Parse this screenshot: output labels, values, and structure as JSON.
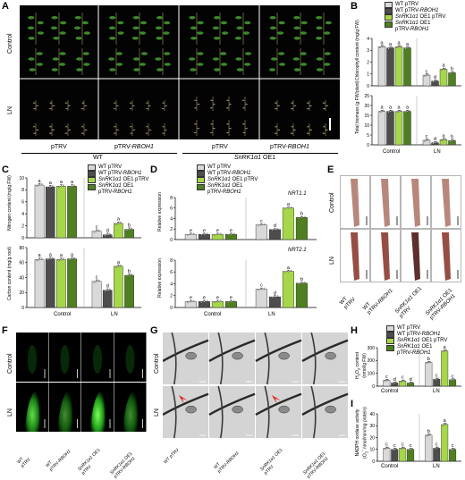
{
  "panels": {
    "A": "A",
    "B": "B",
    "C": "C",
    "D": "D",
    "E": "E",
    "F": "F",
    "G": "G",
    "H": "H",
    "I": "I"
  },
  "colors": {
    "wt_ptrv": "#d9d9d9",
    "wt_ptrv_rboh1": "#4d4d4d",
    "oe_ptrv": "#a6d64a",
    "oe_ptrv_rboh1": "#4f7f20",
    "plant_bg": "#000000",
    "root_stain": "#a0524a",
    "fluorescence": "#33ff33"
  },
  "legend": {
    "l1": "WT pTRV",
    "l2": "WT pTRV-RBOH1",
    "l3_a": "SnRK1α1 OE1 pTRV",
    "l4_a": "SnRK1α1 OE1",
    "l4_b": "pTRV-RBOH1"
  },
  "conditions": {
    "control": "Control",
    "ln": "LN"
  },
  "panelA": {
    "row_control": "Control",
    "row_ln": "LN",
    "col1": "pTRV",
    "col2": "pTRV-RBOH1",
    "col3": "pTRV",
    "col4": "pTRV-RBOH1",
    "group1": "WT",
    "group2": "SnRK1α1 OE1"
  },
  "panelB": {
    "ylabel1": "Chlorophyll content (mg/g FW)",
    "ylabel2": "Total biomass (g FW/plant)",
    "xlabels": [
      "Control",
      "LN"
    ]
  },
  "panelC": {
    "ylabel1": "Nitrogen content (mg/g FW)",
    "ylabel2": "Carbon content (mg/g root)",
    "xlabels": [
      "Control",
      "LN"
    ]
  },
  "panelD": {
    "ylabel": "Relative expression",
    "gene1": "NRT1.1",
    "gene2": "NRT2.1",
    "xlabels": [
      "Control",
      "LN"
    ]
  },
  "panelE": {
    "row_control": "Control",
    "row_ln": "LN",
    "cols": [
      "WT\npTRV",
      "WT\npTRV-RBOH1",
      "SnRK1α1 OE1\npTRV",
      "SnRK1α1 OE1\npTRV-RBOH1"
    ]
  },
  "panelF": {
    "row_control": "Control",
    "row_ln": "LN",
    "cols": [
      "WT\npTRV",
      "WT\npTRV-RBOH1",
      "SnRK1α1 OE1\npTRV",
      "SnRK1α1 OE1\npTRV-RBOH1"
    ]
  },
  "panelG": {
    "row_control": "Control",
    "row_ln": "LN",
    "cols": [
      "WT pTRV",
      "WT\npTRV-RBOH1",
      "SnRK1α1 OE1\npTRV",
      "SnRK1α1 OE1\npTRV-RBOH1"
    ]
  },
  "panelH": {
    "ylabel": "H2O2 content (nmol/g FW)",
    "xlabels": [
      "Control",
      "LN"
    ]
  },
  "panelI": {
    "ylabel": "NADPH oxidase activity (O2- nmol/min/mg protein)",
    "xlabels": [
      "Control",
      "LN"
    ]
  },
  "chart_data": [
    {
      "id": "B-chlorophyll",
      "type": "bar",
      "ylabel": "Chlorophyll content (mg/g FW)",
      "ylim": [
        0,
        4
      ],
      "yticks": [
        0,
        1,
        2,
        3,
        4
      ],
      "categories": [
        "Control",
        "LN"
      ],
      "series": [
        {
          "name": "WT pTRV",
          "values": [
            3.3,
            0.9
          ]
        },
        {
          "name": "WT pTRV-RBOH1",
          "values": [
            3.2,
            0.4
          ]
        },
        {
          "name": "SnRK1α1 OE1 pTRV",
          "values": [
            3.3,
            1.4
          ]
        },
        {
          "name": "SnRK1α1 OE1 pTRV-RBOH1",
          "values": [
            3.2,
            1.1
          ]
        }
      ],
      "letters": [
        [
          "a",
          "a",
          "a",
          "a"
        ],
        [
          "c",
          "d",
          "a",
          "b"
        ]
      ]
    },
    {
      "id": "B-biomass",
      "type": "bar",
      "ylabel": "Total biomass (g FW/plant)",
      "ylim": [
        0,
        25
      ],
      "yticks": [
        0,
        5,
        10,
        15,
        20,
        25
      ],
      "categories": [
        "Control",
        "LN"
      ],
      "series": [
        {
          "name": "WT pTRV",
          "values": [
            17,
            2.3
          ]
        },
        {
          "name": "WT pTRV-RBOH1",
          "values": [
            17,
            1.0
          ]
        },
        {
          "name": "SnRK1α1 OE1 pTRV",
          "values": [
            17,
            2.6
          ]
        },
        {
          "name": "SnRK1α1 OE1 pTRV-RBOH1",
          "values": [
            17,
            2.1
          ]
        }
      ],
      "letters": [
        [
          "a",
          "a",
          "a",
          "a"
        ],
        [
          "c",
          "d",
          "a",
          "b"
        ]
      ]
    },
    {
      "id": "C-nitrogen",
      "type": "bar",
      "ylabel": "Nitrogen content (mg/g FW)",
      "ylim": [
        0,
        10
      ],
      "yticks": [
        0,
        2,
        4,
        6,
        8,
        10
      ],
      "categories": [
        "Control",
        "LN"
      ],
      "series": [
        {
          "name": "WT pTRV",
          "values": [
            8.8,
            1.1
          ]
        },
        {
          "name": "WT pTRV-RBOH1",
          "values": [
            8.5,
            0.5
          ]
        },
        {
          "name": "SnRK1α1 OE1 pTRV",
          "values": [
            8.6,
            2.4
          ]
        },
        {
          "name": "SnRK1α1 OE1 pTRV-RBOH1",
          "values": [
            8.6,
            1.4
          ]
        }
      ],
      "letters": [
        [
          "a",
          "a",
          "a",
          "a"
        ],
        [
          "c",
          "d",
          "a",
          "b"
        ]
      ]
    },
    {
      "id": "C-carbon",
      "type": "bar",
      "ylabel": "Carbon content (mg/g root)",
      "ylim": [
        0,
        80
      ],
      "yticks": [
        0,
        20,
        40,
        60,
        80
      ],
      "categories": [
        "Control",
        "LN"
      ],
      "series": [
        {
          "name": "WT pTRV",
          "values": [
            64,
            35
          ]
        },
        {
          "name": "WT pTRV-RBOH1",
          "values": [
            65,
            23
          ]
        },
        {
          "name": "SnRK1α1 OE1 pTRV",
          "values": [
            64,
            55
          ]
        },
        {
          "name": "SnRK1α1 OE1 pTRV-RBOH1",
          "values": [
            65,
            43
          ]
        }
      ],
      "letters": [
        [
          "a",
          "a",
          "a",
          "a"
        ],
        [
          "c",
          "d",
          "a",
          "b"
        ]
      ]
    },
    {
      "id": "D-NRT1.1",
      "type": "bar",
      "ylabel": "Relative expression",
      "ylim": [
        0,
        8
      ],
      "yticks": [
        0,
        2,
        4,
        6,
        8
      ],
      "categories": [
        "Control",
        "LN"
      ],
      "series": [
        {
          "name": "WT pTRV",
          "values": [
            1.0,
            2.8
          ]
        },
        {
          "name": "WT pTRV-RBOH1",
          "values": [
            1.0,
            1.9
          ]
        },
        {
          "name": "SnRK1α1 OE1 pTRV",
          "values": [
            1.0,
            6.0
          ]
        },
        {
          "name": "SnRK1α1 OE1 pTRV-RBOH1",
          "values": [
            1.0,
            4.2
          ]
        }
      ],
      "letters": [
        [
          "e",
          "e",
          "e",
          "e"
        ],
        [
          "c",
          "d",
          "a",
          "b"
        ]
      ]
    },
    {
      "id": "D-NRT2.1",
      "type": "bar",
      "ylabel": "Relative expression",
      "ylim": [
        0,
        8
      ],
      "yticks": [
        0,
        2,
        4,
        6,
        8
      ],
      "categories": [
        "Control",
        "LN"
      ],
      "series": [
        {
          "name": "WT pTRV",
          "values": [
            1.0,
            3.1
          ]
        },
        {
          "name": "WT pTRV-RBOH1",
          "values": [
            1.0,
            1.8
          ]
        },
        {
          "name": "SnRK1α1 OE1 pTRV",
          "values": [
            1.0,
            6.1
          ]
        },
        {
          "name": "SnRK1α1 OE1 pTRV-RBOH1",
          "values": [
            1.0,
            4.1
          ]
        }
      ],
      "letters": [
        [
          "e",
          "e",
          "e",
          "e"
        ],
        [
          "c",
          "d",
          "a",
          "b"
        ]
      ]
    },
    {
      "id": "H-h2o2",
      "type": "bar",
      "ylabel": "H2O2 content (nmol/g FW)",
      "ylim": [
        0,
        300
      ],
      "yticks": [
        0,
        100,
        200,
        300
      ],
      "categories": [
        "Control",
        "LN"
      ],
      "series": [
        {
          "name": "WT pTRV",
          "values": [
            45,
            185
          ]
        },
        {
          "name": "WT pTRV-RBOH1",
          "values": [
            25,
            55
          ]
        },
        {
          "name": "SnRK1α1 OE1 pTRV",
          "values": [
            40,
            275
          ]
        },
        {
          "name": "SnRK1α1 OE1 pTRV-RBOH1",
          "values": [
            25,
            50
          ]
        }
      ],
      "letters": [
        [
          "c",
          "d",
          "c",
          "d"
        ],
        [
          "b",
          "c",
          "a",
          "c"
        ]
      ]
    },
    {
      "id": "I-nadph",
      "type": "bar",
      "ylabel": "NADPH oxidase activity (O2- nmol/min/mg protein)",
      "ylim": [
        0,
        40
      ],
      "yticks": [
        0,
        10,
        20,
        30,
        40
      ],
      "categories": [
        "Control",
        "LN"
      ],
      "series": [
        {
          "name": "WT pTRV",
          "values": [
            11,
            22
          ]
        },
        {
          "name": "WT pTRV-RBOH1",
          "values": [
            10,
            11
          ]
        },
        {
          "name": "SnRK1α1 OE1 pTRV",
          "values": [
            11,
            31
          ]
        },
        {
          "name": "SnRK1α1 OE1 pTRV-RBOH1",
          "values": [
            10,
            10
          ]
        }
      ],
      "letters": [
        [
          "c",
          "c",
          "c",
          "c"
        ],
        [
          "b",
          "c",
          "a",
          "c"
        ]
      ]
    }
  ]
}
